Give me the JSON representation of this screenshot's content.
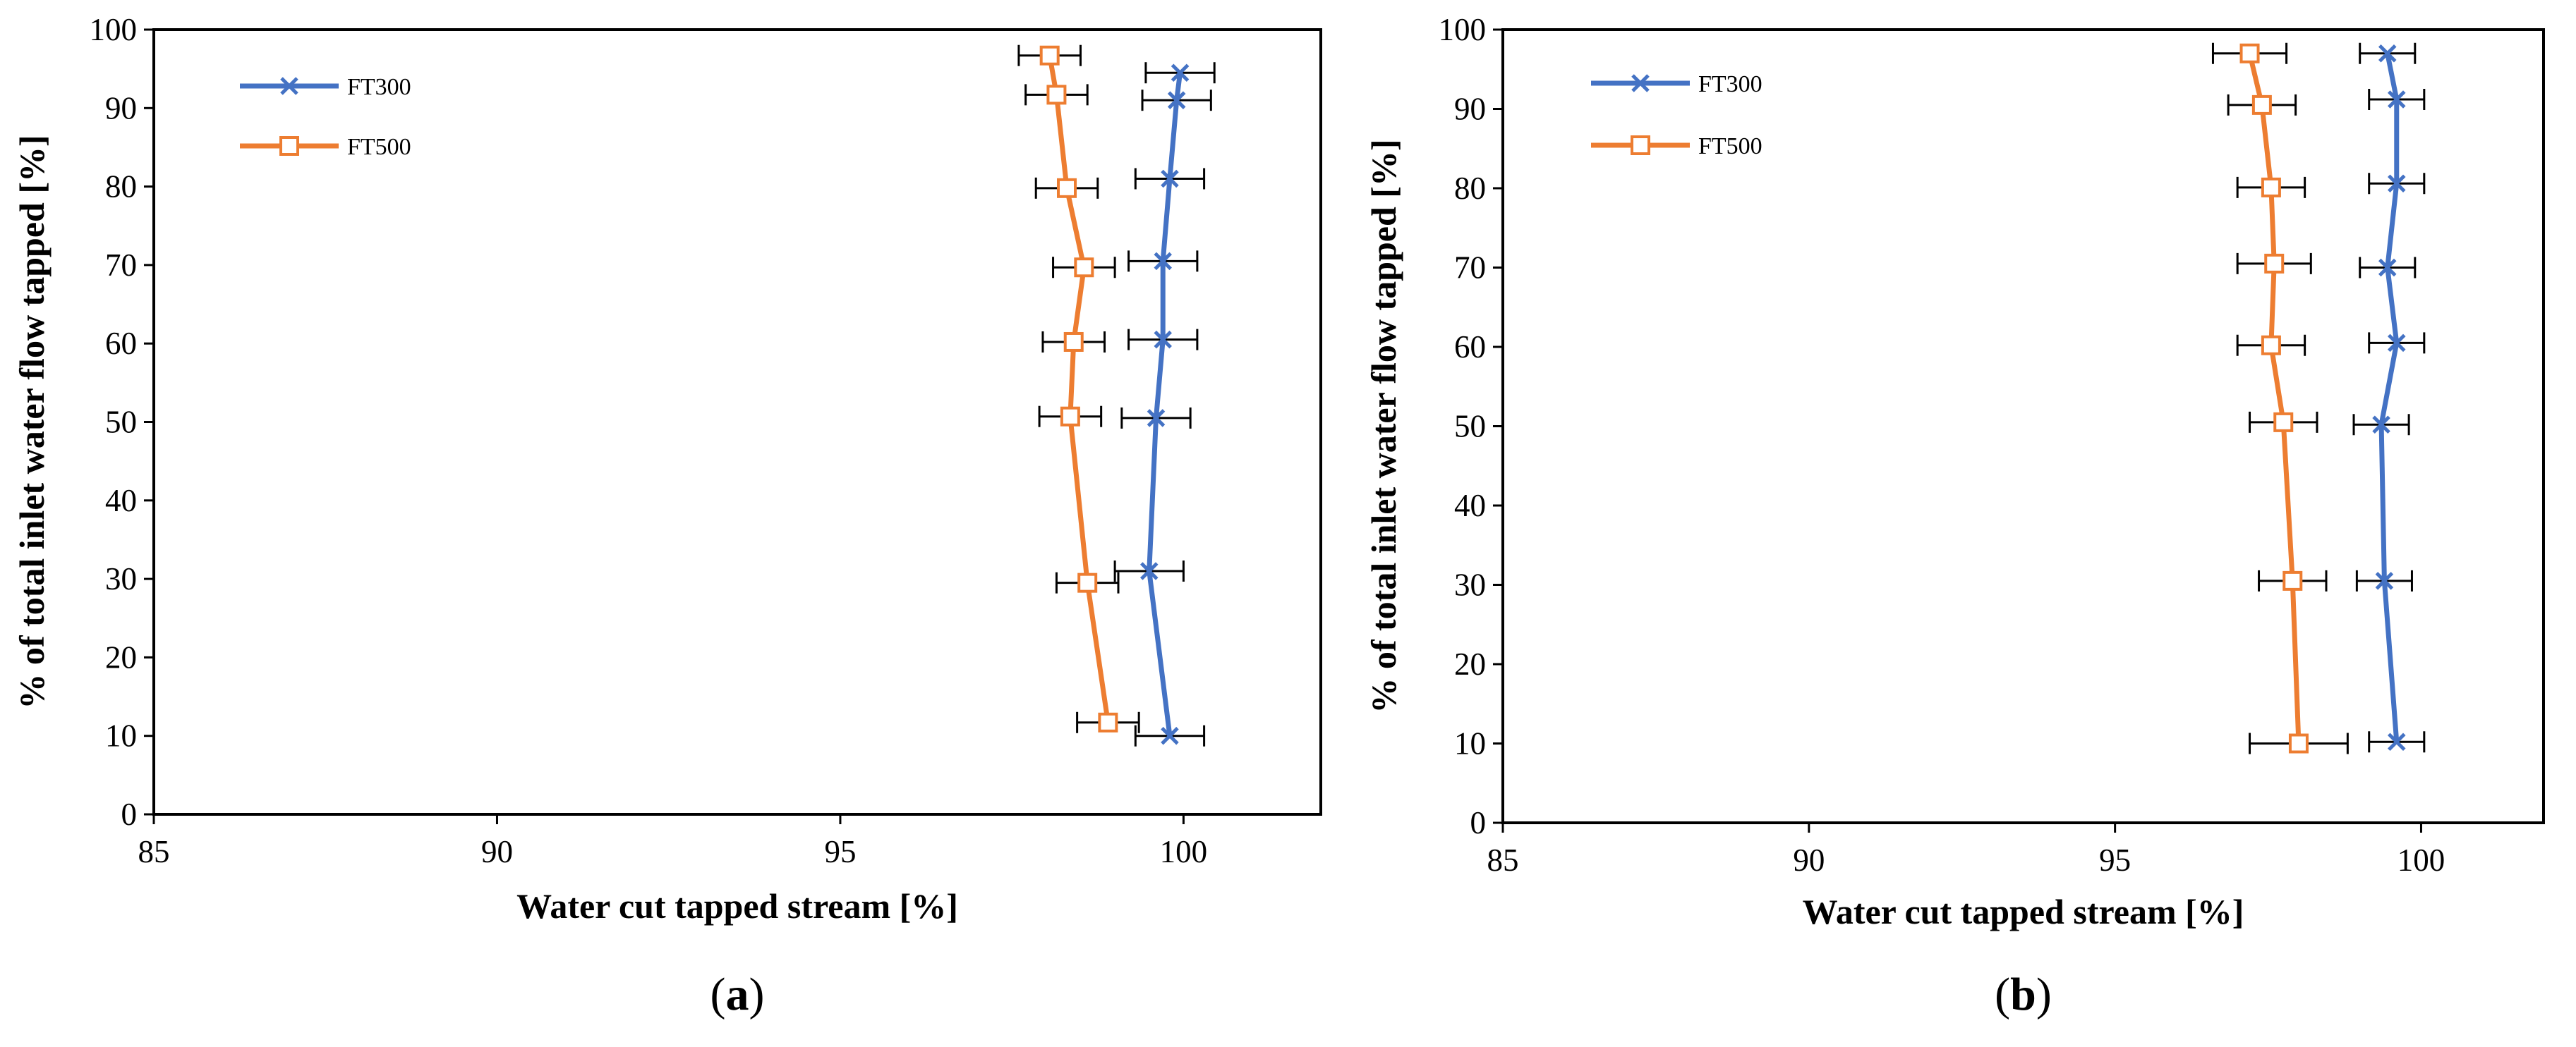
{
  "chart_data": [
    {
      "panel": "a",
      "type": "line",
      "panel_label": "a",
      "xlabel": "Water cut tapped stream [%]",
      "ylabel": "% of total inlet water flow tapped [%]",
      "xlim": [
        85,
        102
      ],
      "ylim": [
        0,
        100
      ],
      "xticks": [
        85,
        90,
        95,
        100
      ],
      "yticks": [
        0,
        10,
        20,
        30,
        40,
        50,
        60,
        70,
        80,
        90,
        100
      ],
      "grid": false,
      "legend": "top-left",
      "series": [
        {
          "name": "FT300",
          "color": "#4472C4",
          "marker": "x",
          "x": [
            99.8,
            99.5,
            99.6,
            99.7,
            99.7,
            99.8,
            99.9,
            99.95
          ],
          "y": [
            10,
            31,
            50.5,
            60.5,
            70.5,
            81,
            91,
            94.5
          ],
          "xerr": [
            0.5,
            0.5,
            0.5,
            0.5,
            0.5,
            0.5,
            0.5,
            0.5
          ]
        },
        {
          "name": "FT500",
          "color": "#ED7D31",
          "marker": "square",
          "x": [
            98.9,
            98.6,
            98.35,
            98.4,
            98.55,
            98.3,
            98.15,
            98.05
          ],
          "y": [
            11.7,
            29.5,
            50.7,
            60.2,
            69.7,
            79.8,
            91.7,
            96.7
          ],
          "xerr": [
            0.45,
            0.45,
            0.45,
            0.45,
            0.45,
            0.45,
            0.45,
            0.45
          ]
        }
      ]
    },
    {
      "panel": "b",
      "type": "line",
      "panel_label": "b",
      "xlabel": "Water cut tapped stream [%]",
      "ylabel": "% of total inlet water flow tapped [%]",
      "xlim": [
        85,
        102
      ],
      "ylim": [
        0,
        100
      ],
      "xticks": [
        85,
        90,
        95,
        100
      ],
      "yticks": [
        0,
        10,
        20,
        30,
        40,
        50,
        60,
        70,
        80,
        90,
        100
      ],
      "grid": false,
      "legend": "top-left",
      "series": [
        {
          "name": "FT300",
          "color": "#4472C4",
          "marker": "x",
          "x": [
            99.6,
            99.4,
            99.35,
            99.6,
            99.45,
            99.6,
            99.6,
            99.45
          ],
          "y": [
            10.2,
            30.5,
            50.2,
            60.5,
            70,
            80.6,
            91.2,
            97
          ],
          "xerr": [
            0.45,
            0.45,
            0.45,
            0.45,
            0.45,
            0.45,
            0.45,
            0.45
          ]
        },
        {
          "name": "FT500",
          "color": "#ED7D31",
          "marker": "square",
          "x": [
            98.0,
            97.9,
            97.75,
            97.55,
            97.6,
            97.55,
            97.4,
            97.2
          ],
          "y": [
            10,
            30.5,
            50.5,
            60.2,
            70.5,
            80.1,
            90.5,
            97
          ],
          "xerr": [
            0.8,
            0.55,
            0.55,
            0.55,
            0.6,
            0.55,
            0.55,
            0.6
          ]
        }
      ]
    }
  ]
}
